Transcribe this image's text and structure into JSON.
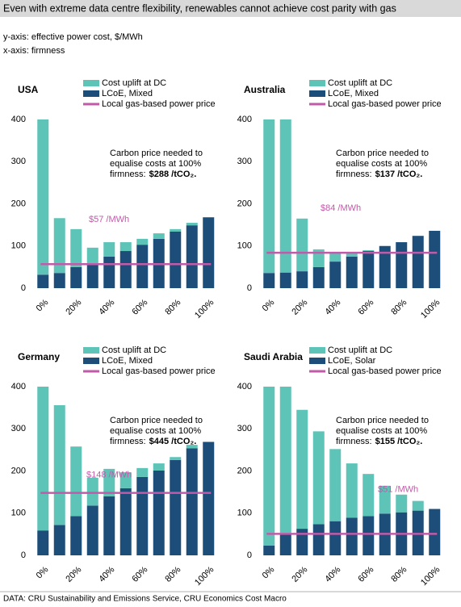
{
  "header": {
    "title": "Even with extreme data centre flexibility, renewables cannot achieve cost parity with gas",
    "y_axis_note": "y-axis: effective power cost, $/MWh",
    "x_axis_note": "x-axis: firmness"
  },
  "footer": {
    "source": "DATA: CRU Sustainability and Emissions Service, CRU Economics Cost Macro"
  },
  "chart_data": [
    {
      "type": "stacked_bar",
      "title": "USA",
      "categories": [
        "0%",
        null,
        "20%",
        null,
        "40%",
        null,
        "60%",
        null,
        "80%",
        null,
        "100%"
      ],
      "series": [
        {
          "name": "Cost uplift at DC",
          "color": "#5ec4b8",
          "values": [
            368,
            130,
            90,
            41,
            34,
            21,
            14,
            13,
            6,
            6,
            0
          ]
        },
        {
          "name": "LCoE, Mixed",
          "color": "#1d4e7a",
          "values": [
            32,
            36,
            50,
            55,
            75,
            88,
            103,
            117,
            134,
            149,
            168
          ]
        }
      ],
      "reference_line": {
        "name": "Local gas-based power price",
        "color": "#c15aa8",
        "value": 57,
        "label": "$57 /MWh"
      },
      "annotation": [
        "Carbon price needed to",
        "equalise costs at 100%",
        "firmness:"
      ],
      "carbon_price": "$288 /tCO₂.",
      "ylim": [
        0,
        400
      ],
      "yticks": [
        0,
        100,
        200,
        300,
        400
      ]
    },
    {
      "type": "stacked_bar",
      "title": "Australia",
      "categories": [
        "0%",
        null,
        "20%",
        null,
        "40%",
        null,
        "60%",
        null,
        "80%",
        null,
        "100%"
      ],
      "series": [
        {
          "name": "Cost uplift at DC",
          "color": "#5ec4b8",
          "values": [
            364,
            363,
            125,
            42,
            21,
            9,
            2,
            0,
            0,
            0,
            0
          ]
        },
        {
          "name": "LCoE, Mixed",
          "color": "#1d4e7a",
          "values": [
            36,
            37,
            40,
            50,
            63,
            75,
            88,
            100,
            109,
            124,
            136
          ]
        }
      ],
      "reference_line": {
        "name": "Local gas-based power price",
        "color": "#c15aa8",
        "value": 84,
        "label": "$84 /MWh"
      },
      "annotation": [
        "Carbon price needed to",
        "equalise costs at 100%",
        "firmness:"
      ],
      "carbon_price": "$137 /tCO₂.",
      "ylim": [
        0,
        400
      ],
      "yticks": [
        0,
        100,
        200,
        300,
        400
      ]
    },
    {
      "type": "stacked_bar",
      "title": "Germany",
      "categories": [
        "0%",
        null,
        "20%",
        null,
        "40%",
        null,
        "60%",
        null,
        "80%",
        null,
        "100%"
      ],
      "series": [
        {
          "name": "Cost uplift at DC",
          "color": "#5ec4b8",
          "values": [
            341,
            284,
            165,
            66,
            65,
            38,
            21,
            17,
            7,
            8,
            0
          ]
        },
        {
          "name": "LCoE, Mixed",
          "color": "#1d4e7a",
          "values": [
            59,
            72,
            93,
            118,
            140,
            159,
            186,
            201,
            226,
            254,
            269
          ]
        }
      ],
      "reference_line": {
        "name": "Local gas-based power price",
        "color": "#c15aa8",
        "value": 148,
        "label": "$148 /MWh"
      },
      "annotation": [
        "Carbon price needed to",
        "equalise costs at 100%",
        "firmness:"
      ],
      "carbon_price": "$445 /tCO₂.",
      "ylim": [
        0,
        400
      ],
      "yticks": [
        0,
        100,
        200,
        300,
        400
      ]
    },
    {
      "type": "stacked_bar",
      "title": "Saudi Arabia",
      "categories": [
        "0%",
        null,
        "20%",
        null,
        "40%",
        null,
        "60%",
        null,
        "80%",
        null,
        "100%"
      ],
      "series": [
        {
          "name": "Cost uplift at DC",
          "color": "#5ec4b8",
          "values": [
            377,
            349,
            282,
            220,
            171,
            129,
            100,
            66,
            42,
            23,
            0
          ]
        },
        {
          "name": "LCoE, Solar",
          "color": "#1d4e7a",
          "values": [
            23,
            51,
            63,
            74,
            81,
            89,
            93,
            99,
            102,
            106,
            110
          ]
        }
      ],
      "reference_line": {
        "name": "Local gas-based power price",
        "color": "#c15aa8",
        "value": 51,
        "label": "$51 /MWh"
      },
      "annotation": [
        "Carbon price needed to",
        "equalise costs at 100%",
        "firmness:"
      ],
      "carbon_price": "$155 /tCO₂.",
      "ylim": [
        0,
        400
      ],
      "yticks": [
        0,
        100,
        200,
        300,
        400
      ]
    }
  ]
}
